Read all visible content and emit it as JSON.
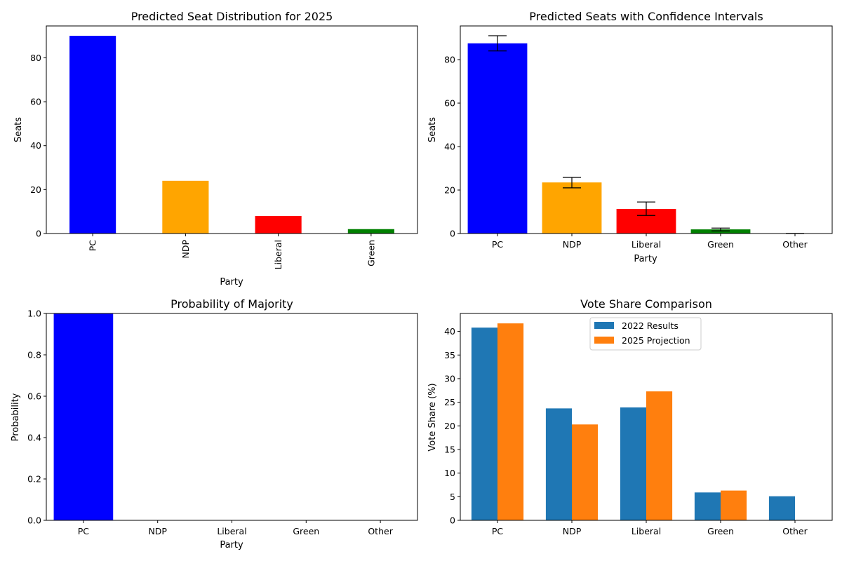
{
  "chart_data": [
    {
      "id": "seat_distribution",
      "type": "bar",
      "title": "Predicted Seat Distribution for 2025",
      "xlabel": "Party",
      "ylabel": "Seats",
      "categories": [
        "PC",
        "NDP",
        "Liberal",
        "Green"
      ],
      "values": [
        90,
        24,
        8,
        2
      ],
      "colors": [
        "#0000ff",
        "#ffa500",
        "#ff0000",
        "#008000"
      ],
      "ylim": [
        0,
        94.5
      ],
      "yticks": [
        "0",
        "20",
        "40",
        "60",
        "80"
      ],
      "xtick_rotation": "vertical",
      "grid": false,
      "legend": "none"
    },
    {
      "id": "seats_confidence",
      "type": "bar",
      "title": "Predicted Seats with Confidence Intervals",
      "xlabel": "Party",
      "ylabel": "Seats",
      "categories": [
        "PC",
        "NDP",
        "Liberal",
        "Green",
        "Other"
      ],
      "values": [
        87.5,
        23.5,
        11.3,
        1.9,
        0
      ],
      "errors": [
        [
          84,
          91
        ],
        [
          21,
          25.8
        ],
        [
          8.3,
          14.5
        ],
        [
          1.2,
          2.5
        ],
        [
          0,
          0
        ]
      ],
      "colors": [
        "#0000ff",
        "#ffa500",
        "#ff0000",
        "#008000",
        "#808080"
      ],
      "ylim": [
        0,
        95.5
      ],
      "yticks": [
        "0",
        "20",
        "40",
        "60",
        "80"
      ],
      "grid": false,
      "legend": "none"
    },
    {
      "id": "majority_probability",
      "type": "bar",
      "title": "Probability of Majority",
      "xlabel": "Party",
      "ylabel": "Probability",
      "categories": [
        "PC",
        "NDP",
        "Liberal",
        "Green",
        "Other"
      ],
      "values": [
        1.0,
        0,
        0,
        0,
        0
      ],
      "colors": [
        "#0000ff",
        "#ffa500",
        "#ff0000",
        "#008000",
        "#808080"
      ],
      "ylim": [
        0,
        1
      ],
      "yticks": [
        "0.0",
        "0.2",
        "0.4",
        "0.6",
        "0.8",
        "1.0"
      ],
      "grid": false,
      "legend": "none"
    },
    {
      "id": "vote_share",
      "type": "bar",
      "title": "Vote Share Comparison",
      "xlabel": "",
      "ylabel": "Vote Share (%)",
      "categories": [
        "PC",
        "NDP",
        "Liberal",
        "Green",
        "Other"
      ],
      "series": [
        {
          "name": "2022 Results",
          "values": [
            40.8,
            23.7,
            23.9,
            5.9,
            5.1
          ],
          "color": "#1f77b4"
        },
        {
          "name": "2025 Projection",
          "values": [
            41.7,
            20.3,
            27.3,
            6.3,
            0
          ],
          "color": "#ff7f0e"
        }
      ],
      "ylim": [
        0,
        43.8
      ],
      "yticks": [
        "0",
        "5",
        "10",
        "15",
        "20",
        "25",
        "30",
        "35",
        "40"
      ],
      "grid": false,
      "legend": "upper-center"
    }
  ]
}
